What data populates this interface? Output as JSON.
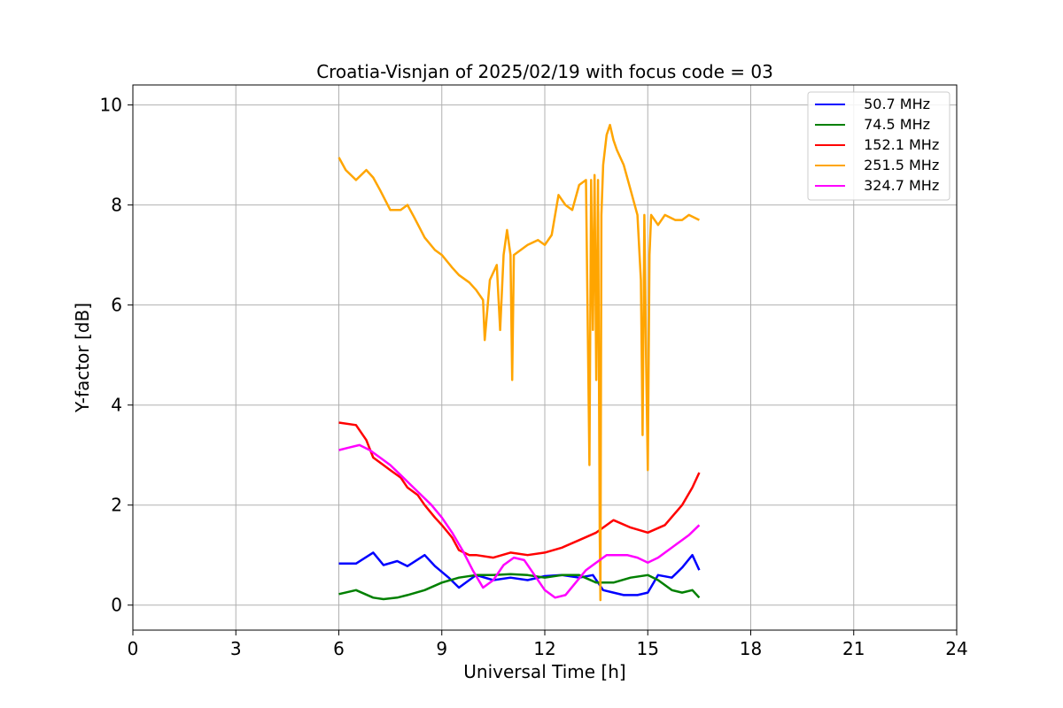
{
  "chart_data": {
    "type": "line",
    "title": "Croatia-Visnjan of 2025/02/19 with focus code = 03",
    "xlabel": "Universal Time [h]",
    "ylabel": "Y-factor [dB]",
    "xlim": [
      0,
      24
    ],
    "ylim": [
      -0.5,
      10.4
    ],
    "xticks": [
      0,
      3,
      6,
      9,
      12,
      15,
      18,
      21,
      24
    ],
    "yticks": [
      0,
      2,
      4,
      6,
      8,
      10
    ],
    "grid": true,
    "legend_position": "top-right",
    "series": [
      {
        "name": " 50.7 MHz",
        "color": "#0000ff",
        "x": [
          6.0,
          6.5,
          7.0,
          7.3,
          7.7,
          8.0,
          8.5,
          8.8,
          9.2,
          9.5,
          10.0,
          10.5,
          11.0,
          11.5,
          12.0,
          12.5,
          13.0,
          13.4,
          13.7,
          14.0,
          14.3,
          14.7,
          15.0,
          15.3,
          15.7,
          16.0,
          16.3,
          16.5
        ],
        "values": [
          0.83,
          0.83,
          1.05,
          0.8,
          0.88,
          0.78,
          1.0,
          0.78,
          0.55,
          0.35,
          0.6,
          0.5,
          0.55,
          0.5,
          0.58,
          0.6,
          0.55,
          0.6,
          0.3,
          0.25,
          0.2,
          0.2,
          0.25,
          0.6,
          0.55,
          0.75,
          1.0,
          0.7
        ]
      },
      {
        "name": " 74.5 MHz",
        "color": "#008000",
        "x": [
          6.0,
          6.5,
          7.0,
          7.3,
          7.7,
          8.0,
          8.5,
          9.0,
          9.5,
          10.0,
          10.5,
          11.0,
          11.5,
          12.0,
          12.5,
          13.0,
          13.5,
          14.0,
          14.5,
          15.0,
          15.3,
          15.7,
          16.0,
          16.3,
          16.5
        ],
        "values": [
          0.22,
          0.3,
          0.15,
          0.12,
          0.15,
          0.2,
          0.3,
          0.45,
          0.55,
          0.6,
          0.6,
          0.62,
          0.6,
          0.55,
          0.6,
          0.6,
          0.45,
          0.45,
          0.55,
          0.6,
          0.5,
          0.3,
          0.25,
          0.3,
          0.15
        ]
      },
      {
        "name": " 152.1 MHz",
        "color": "#ff0000",
        "x": [
          6.0,
          6.5,
          6.8,
          7.0,
          7.3,
          7.5,
          7.8,
          8.0,
          8.3,
          8.5,
          8.8,
          9.0,
          9.3,
          9.5,
          9.8,
          10.0,
          10.5,
          11.0,
          11.5,
          12.0,
          12.5,
          13.0,
          13.5,
          14.0,
          14.5,
          15.0,
          15.5,
          16.0,
          16.3,
          16.5
        ],
        "values": [
          3.65,
          3.6,
          3.3,
          2.95,
          2.8,
          2.7,
          2.55,
          2.35,
          2.2,
          2.0,
          1.75,
          1.6,
          1.35,
          1.1,
          1.0,
          1.0,
          0.95,
          1.05,
          1.0,
          1.05,
          1.15,
          1.3,
          1.45,
          1.7,
          1.55,
          1.45,
          1.6,
          2.0,
          2.35,
          2.65
        ]
      },
      {
        "name": " 251.5 MHz",
        "color": "#ffa500",
        "x": [
          6.0,
          6.2,
          6.5,
          6.8,
          7.0,
          7.2,
          7.5,
          7.8,
          8.0,
          8.2,
          8.5,
          8.8,
          9.0,
          9.3,
          9.5,
          9.8,
          10.0,
          10.2,
          10.25,
          10.4,
          10.6,
          10.7,
          10.8,
          10.9,
          11.0,
          11.05,
          11.1,
          11.5,
          11.8,
          12.0,
          12.2,
          12.4,
          12.6,
          12.8,
          13.0,
          13.2,
          13.3,
          13.35,
          13.4,
          13.45,
          13.5,
          13.55,
          13.6,
          13.62,
          13.65,
          13.7,
          13.8,
          13.9,
          14.0,
          14.1,
          14.3,
          14.5,
          14.7,
          14.8,
          14.85,
          14.9,
          14.95,
          15.0,
          15.05,
          15.1,
          15.3,
          15.5,
          15.8,
          16.0,
          16.2,
          16.5
        ],
        "values": [
          8.95,
          8.7,
          8.5,
          8.7,
          8.55,
          8.3,
          7.9,
          7.9,
          8.0,
          7.75,
          7.35,
          7.1,
          7.0,
          6.75,
          6.6,
          6.45,
          6.3,
          6.1,
          5.3,
          6.5,
          6.8,
          5.5,
          7.0,
          7.5,
          7.0,
          4.5,
          7.0,
          7.2,
          7.3,
          7.2,
          7.4,
          8.2,
          8.0,
          7.9,
          8.4,
          8.5,
          2.8,
          8.5,
          5.5,
          8.6,
          4.5,
          8.5,
          1.5,
          0.1,
          7.8,
          8.8,
          9.4,
          9.6,
          9.3,
          9.1,
          8.8,
          8.3,
          7.8,
          6.5,
          3.4,
          7.8,
          5.0,
          2.7,
          7.0,
          7.8,
          7.6,
          7.8,
          7.7,
          7.7,
          7.8,
          7.7
        ]
      },
      {
        "name": " 324.7 MHz",
        "color": "#ff00ff",
        "x": [
          6.0,
          6.3,
          6.6,
          6.9,
          7.2,
          7.5,
          7.8,
          8.1,
          8.4,
          8.7,
          9.0,
          9.3,
          9.6,
          9.9,
          10.2,
          10.5,
          10.8,
          11.1,
          11.4,
          11.7,
          12.0,
          12.3,
          12.6,
          12.9,
          13.2,
          13.5,
          13.8,
          14.1,
          14.4,
          14.7,
          15.0,
          15.3,
          15.6,
          15.9,
          16.2,
          16.5
        ],
        "values": [
          3.1,
          3.15,
          3.2,
          3.1,
          2.95,
          2.8,
          2.6,
          2.4,
          2.2,
          2.0,
          1.75,
          1.45,
          1.1,
          0.7,
          0.35,
          0.5,
          0.8,
          0.95,
          0.9,
          0.6,
          0.3,
          0.15,
          0.2,
          0.45,
          0.7,
          0.85,
          1.0,
          1.0,
          1.0,
          0.95,
          0.85,
          0.95,
          1.1,
          1.25,
          1.4,
          1.6
        ]
      }
    ]
  }
}
